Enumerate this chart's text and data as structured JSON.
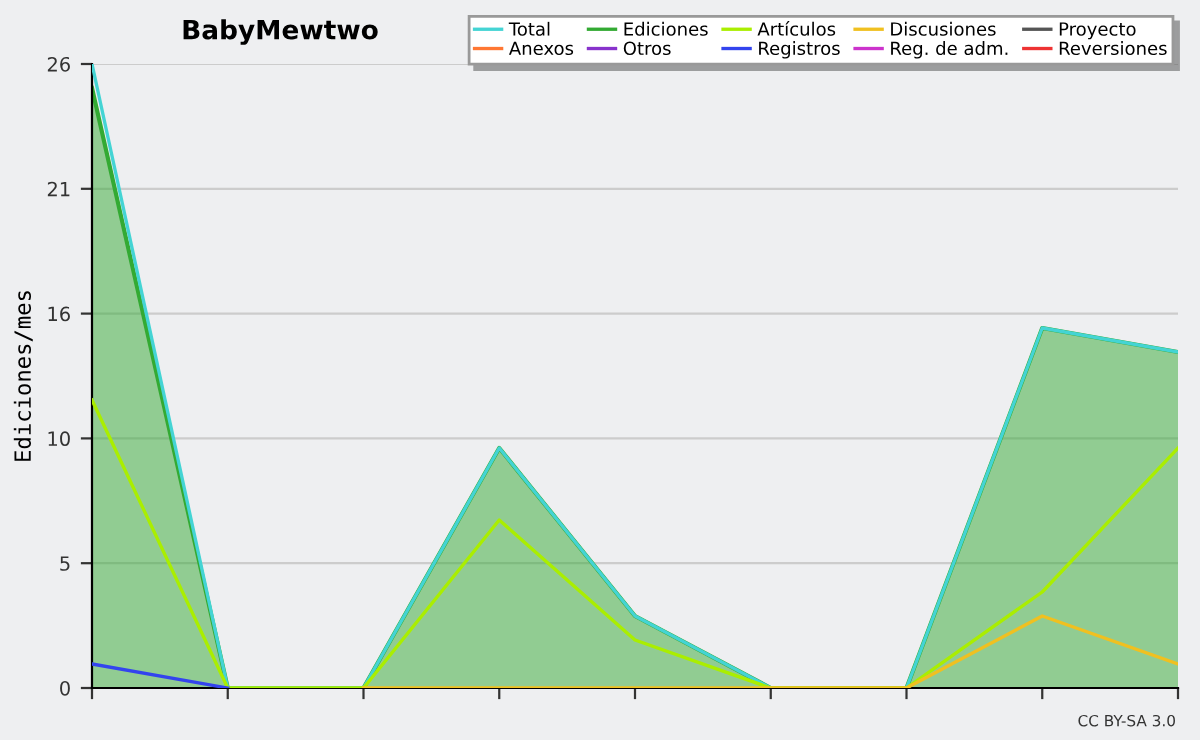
{
  "chart_data": {
    "type": "line",
    "title": "BabyMewtwo",
    "ylabel": "Ediciones/mes",
    "categories": [
      null,
      null,
      null,
      null,
      null,
      null,
      null,
      null,
      null
    ],
    "series": [
      {
        "name": "Total",
        "color": "#44d4d4",
        "values": [
          26,
          0,
          0,
          10,
          3,
          0,
          0,
          15,
          14
        ]
      },
      {
        "name": "Ediciones",
        "color": "#33aa33",
        "type": "area",
        "values": [
          25,
          0,
          0,
          10,
          3,
          0,
          0,
          15,
          14
        ]
      },
      {
        "name": "Artículos",
        "color": "#aaee00",
        "values": [
          12,
          0,
          0,
          7,
          2,
          0,
          0,
          4,
          10
        ]
      },
      {
        "name": "Discusiones",
        "color": "#f0c020",
        "values": [
          null,
          null,
          0,
          0,
          0,
          0,
          0,
          3,
          1
        ]
      },
      {
        "name": "Proyecto",
        "color": "#555555",
        "values": [
          null,
          null,
          null,
          null,
          null,
          null,
          null,
          null,
          null
        ]
      },
      {
        "name": "Anexos",
        "color": "#ff7733",
        "values": [
          null,
          null,
          null,
          null,
          null,
          null,
          null,
          null,
          null
        ]
      },
      {
        "name": "Otros",
        "color": "#8833cc",
        "values": [
          null,
          null,
          null,
          null,
          null,
          null,
          null,
          null,
          null
        ]
      },
      {
        "name": "Registros",
        "color": "#3344ee",
        "values": [
          1,
          0,
          null,
          null,
          null,
          null,
          null,
          null,
          null
        ]
      },
      {
        "name": "Reg. de adm.",
        "color": "#cc33cc",
        "values": [
          null,
          null,
          null,
          null,
          null,
          null,
          null,
          null,
          null
        ]
      },
      {
        "name": "Reversiones",
        "color": "#ee3333",
        "values": [
          null,
          null,
          null,
          null,
          null,
          null,
          null,
          null,
          null
        ]
      }
    ],
    "ylim": [
      0,
      26
    ],
    "yticks": [
      0,
      {
        "value": 5.2,
        "label": "5"
      },
      {
        "value": 10.4,
        "label": "10"
      },
      {
        "value": 15.6,
        "label": "16"
      },
      {
        "value": 20.8,
        "label": "21"
      },
      26
    ],
    "grid": "y",
    "legend": "top right",
    "annotations": [
      "CC BY-SA 3.0"
    ]
  }
}
